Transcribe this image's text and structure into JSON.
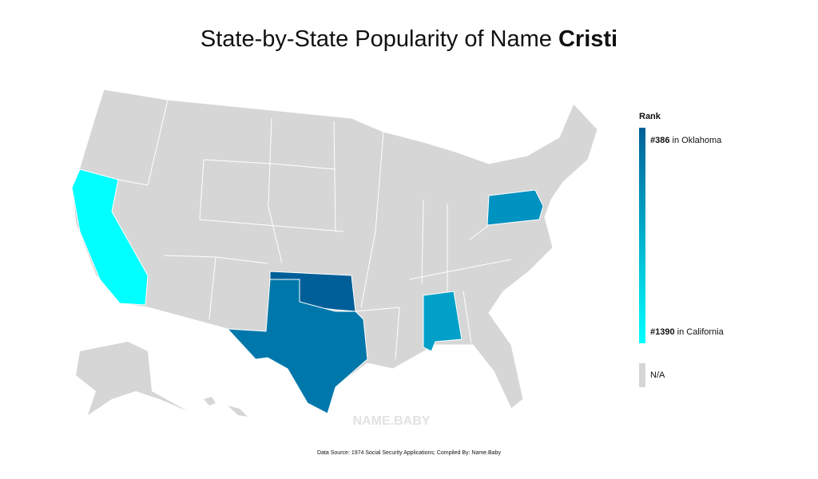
{
  "title": {
    "text": "State-by-State Popularity of Name ",
    "name": "Cristi"
  },
  "legend": {
    "title": "Rank",
    "high": {
      "rank": {
        "value": 386,
        "label": "#386"
      },
      "place": " in Oklahoma",
      "color": "#005f99"
    },
    "low": {
      "rank": {
        "value": 1390,
        "label": "#1390"
      },
      "place": " in California",
      "color": "#00ffff"
    },
    "na": {
      "label": "N/A",
      "color": "#d6d6d6"
    }
  },
  "shaded": [
    {
      "rank": 1390,
      "color": "#00ffff"
    },
    {
      "rank": 386,
      "color": "#005f99"
    },
    {
      "rank": 590,
      "color": "#0077aa"
    },
    {
      "rank": 790,
      "color": "#0092c0"
    },
    {
      "rank": 840,
      "color": "#00a0c8"
    }
  ],
  "watermark": "NAME.BABY",
  "source": "Data Source: 1974 Social Security Applications; Compiled By: Name.Baby"
}
